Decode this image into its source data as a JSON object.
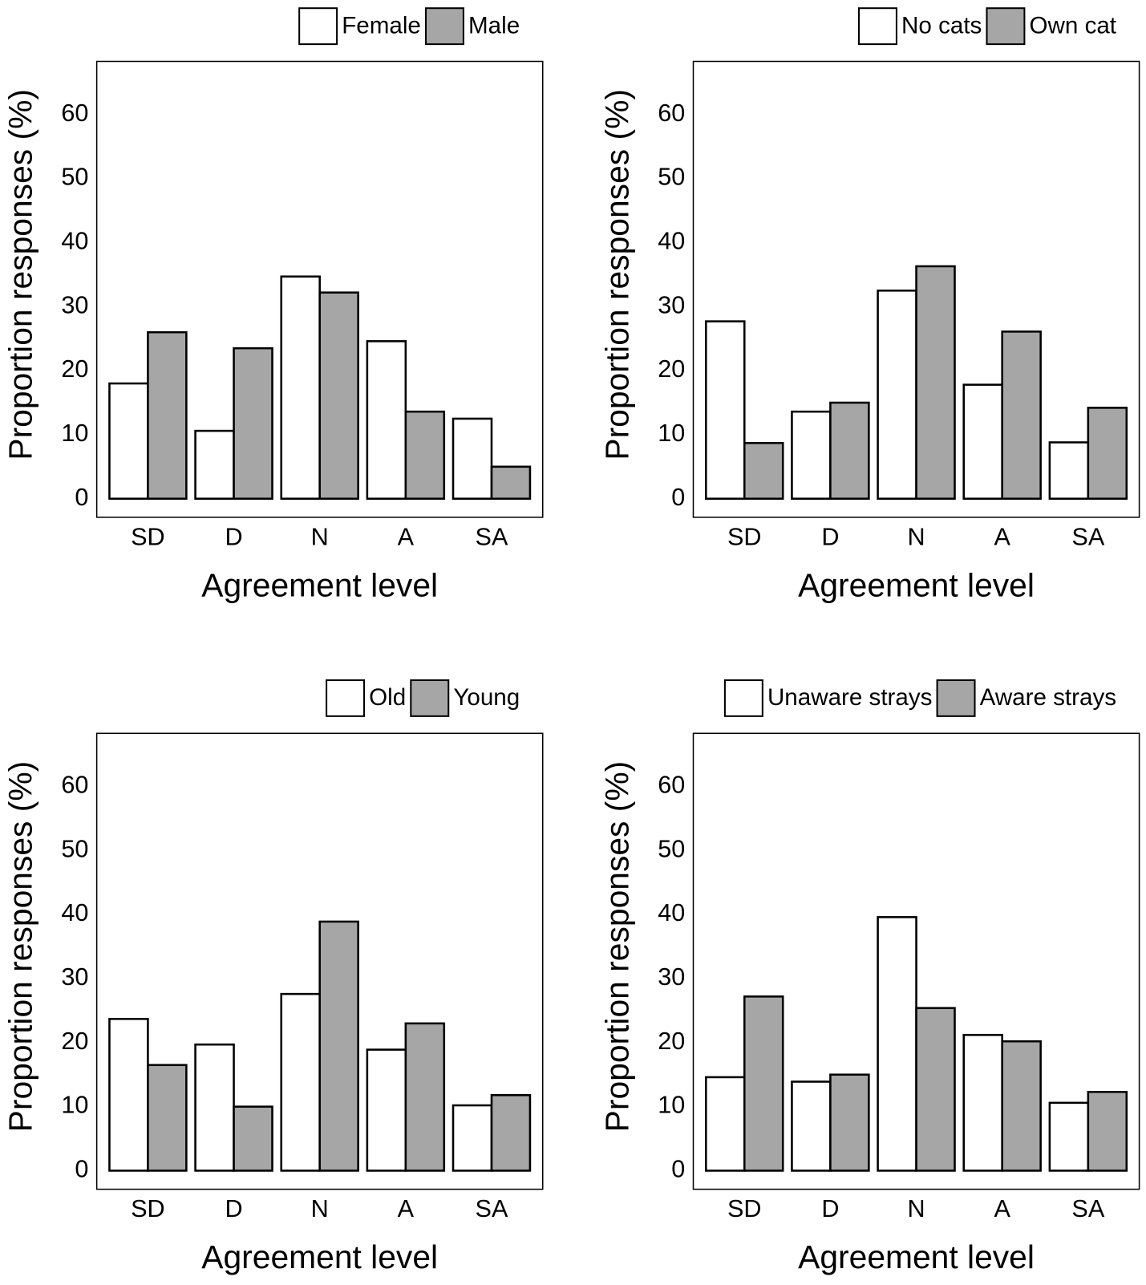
{
  "chart_data": [
    {
      "type": "bar",
      "x_label": "Agreement level",
      "y_label": "Proportion responses (%)",
      "categories": [
        "SD",
        "D",
        "N",
        "A",
        "SA"
      ],
      "series": [
        {
          "name": "Female",
          "color": "#ffffff",
          "values": [
            18,
            10.6,
            34.7,
            24.6,
            12.5
          ]
        },
        {
          "name": "Male",
          "color": "#a6a6a6",
          "values": [
            26,
            23.5,
            32.2,
            13.6,
            5
          ]
        }
      ],
      "ylim": [
        -2.9,
        68.3
      ],
      "yticks": [
        0,
        10,
        20,
        30,
        40,
        50,
        60
      ],
      "legend": "top-right"
    },
    {
      "type": "bar",
      "x_label": "Agreement level",
      "y_label": "Proportion responses (%)",
      "categories": [
        "SD",
        "D",
        "N",
        "A",
        "SA"
      ],
      "series": [
        {
          "name": "No cats",
          "color": "#ffffff",
          "values": [
            27.7,
            13.6,
            32.5,
            17.8,
            8.8
          ]
        },
        {
          "name": "Own cat",
          "color": "#a6a6a6",
          "values": [
            8.7,
            15,
            36.3,
            26.1,
            14.2
          ]
        }
      ],
      "ylim": [
        -2.9,
        68.3
      ],
      "yticks": [
        0,
        10,
        20,
        30,
        40,
        50,
        60
      ],
      "legend": "top-right"
    },
    {
      "type": "bar",
      "x_label": "Agreement level",
      "y_label": "Proportion responses (%)",
      "categories": [
        "SD",
        "D",
        "N",
        "A",
        "SA"
      ],
      "series": [
        {
          "name": "Old",
          "color": "#ffffff",
          "values": [
            23.7,
            19.7,
            27.6,
            18.9,
            10.2
          ]
        },
        {
          "name": "Young",
          "color": "#a6a6a6",
          "values": [
            16.5,
            10,
            38.9,
            23,
            11.8
          ]
        }
      ],
      "ylim": [
        -2.9,
        68.3
      ],
      "yticks": [
        0,
        10,
        20,
        30,
        40,
        50,
        60
      ],
      "legend": "top-right"
    },
    {
      "type": "bar",
      "x_label": "Agreement level",
      "y_label": "Proportion responses (%)",
      "categories": [
        "SD",
        "D",
        "N",
        "A",
        "SA"
      ],
      "series": [
        {
          "name": "Unaware strays",
          "color": "#ffffff",
          "values": [
            14.6,
            13.9,
            39.6,
            21.2,
            10.6
          ]
        },
        {
          "name": "Aware strays",
          "color": "#a6a6a6",
          "values": [
            27.2,
            15,
            25.4,
            20.2,
            12.3
          ]
        }
      ],
      "ylim": [
        -2.9,
        68.3
      ],
      "yticks": [
        0,
        10,
        20,
        30,
        40,
        50,
        60
      ],
      "legend": "top-right"
    }
  ]
}
